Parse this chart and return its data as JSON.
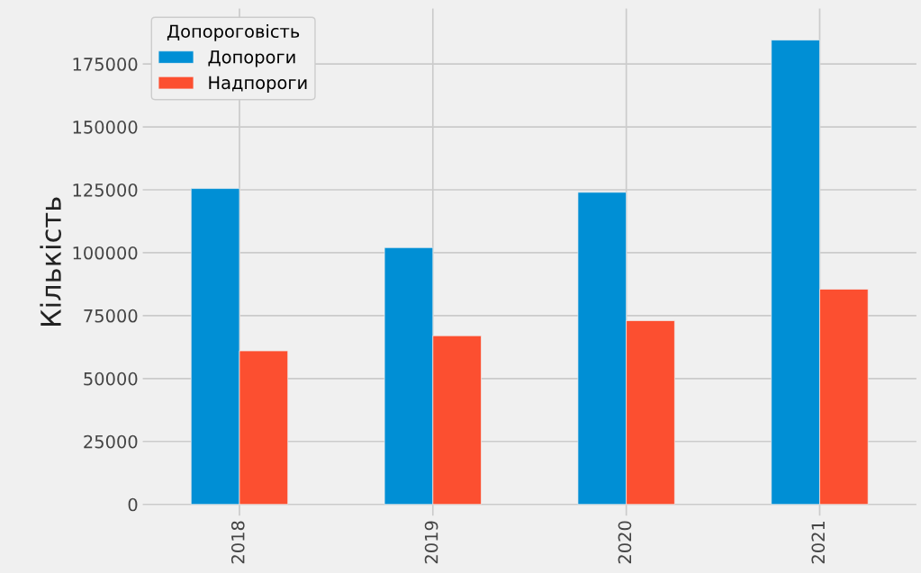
{
  "chart_data": {
    "type": "bar",
    "ylabel": "Кількість",
    "legend_title": "Допороговість",
    "categories": [
      "2018",
      "2019",
      "2020",
      "2021"
    ],
    "series": [
      {
        "name": "Допороги",
        "color": "#008fd5",
        "values": [
          125500,
          102000,
          124000,
          184500
        ]
      },
      {
        "name": "Надпороги",
        "color": "#fc4f30",
        "values": [
          61000,
          67000,
          73000,
          85500
        ]
      }
    ],
    "ylim": [
      -4500,
      197000
    ],
    "yticks": [
      0,
      25000,
      50000,
      75000,
      100000,
      125000,
      150000,
      175000
    ],
    "grid": true,
    "legend": "top left"
  }
}
